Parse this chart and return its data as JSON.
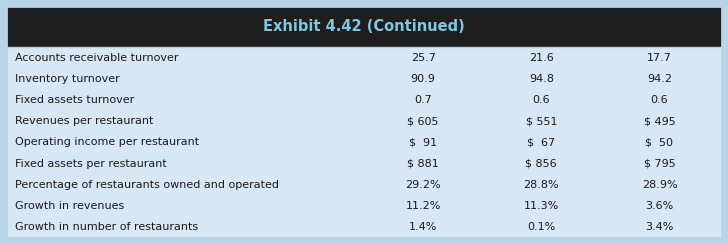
{
  "title": "Exhibit 4.42 (Continued)",
  "title_bg": "#1e1e1e",
  "title_color": "#7ec8e3",
  "outer_bg": "#b8d4e8",
  "table_bg": "#d6e8f5",
  "text_color": "#1a1a1a",
  "rows": [
    [
      "Accounts receivable turnover",
      "25.7",
      "21.6",
      "17.7"
    ],
    [
      "Inventory turnover",
      "90.9",
      "94.8",
      "94.2"
    ],
    [
      "Fixed assets turnover",
      "0.7",
      "0.6",
      "0.6"
    ],
    [
      "Revenues per restaurant",
      "$ 605",
      "$ 551",
      "$ 495"
    ],
    [
      "Operating income per restaurant",
      "$  91",
      "$  67",
      "$  50"
    ],
    [
      "Fixed assets per restaurant",
      "$ 881",
      "$ 856",
      "$ 795"
    ],
    [
      "Percentage of restaurants owned and operated",
      "29.2%",
      "28.8%",
      "28.9%"
    ],
    [
      "Growth in revenues",
      "11.2%",
      "11.3%",
      "3.6%"
    ],
    [
      "Growth in number of restaurants",
      "1.4%",
      "0.1%",
      "3.4%"
    ]
  ],
  "figsize": [
    7.28,
    2.44
  ],
  "dpi": 100,
  "title_fontsize": 10.5,
  "cell_fontsize": 8.0
}
